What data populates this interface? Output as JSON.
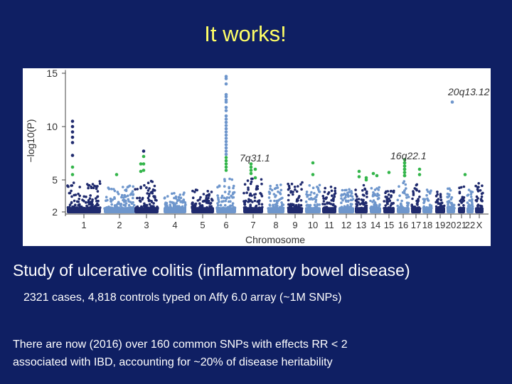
{
  "slide": {
    "title": "It works!",
    "study": "Study of ulcerative colitis (inflammatory bowel disease)",
    "cases": "2321 cases, 4,818 controls typed on Affy 6.0 array (~1M SNPs)",
    "note_line1": "There are now (2016) over 160 common SNPs with effects RR < 2",
    "note_line2": "associated with IBD, accounting for ~20% of disease heritability"
  },
  "chart_data": {
    "type": "scatter",
    "title": "",
    "xlabel": "Chromosome",
    "ylabel": "−log10(P)",
    "ylim": [
      1.5,
      15.5
    ],
    "yticks": [
      2,
      5,
      10,
      15
    ],
    "grid": false,
    "legend": "none",
    "colors": {
      "dark": "#1f2a6e",
      "light": "#6e96cc",
      "significant": "#33b54a"
    },
    "chromosomes": [
      "1",
      "2",
      "3",
      "4",
      "5",
      "6",
      "7",
      "8",
      "9",
      "10",
      "11",
      "12",
      "13",
      "14",
      "15",
      "16",
      "17",
      "18",
      "19",
      "20",
      "21",
      "22",
      "X"
    ],
    "background_peaks": [
      4.9,
      4.5,
      5.0,
      3.8,
      4.2,
      5.3,
      5.2,
      4.6,
      4.8,
      4.6,
      4.4,
      4.2,
      4.6,
      4.5,
      4.3,
      5.0,
      4.8,
      4.1,
      4.5,
      4.2,
      4.4,
      4.1,
      4.9
    ],
    "annotations": [
      {
        "label": "20q13.12",
        "chromosome": "20"
      },
      {
        "label": "7q31.1",
        "chromosome": "7"
      },
      {
        "label": "16q22.1",
        "chromosome": "16"
      }
    ],
    "top_hits": [
      {
        "chromosome": "1",
        "values": [
          10.5,
          10.0,
          9.5,
          9.0,
          8.5,
          7.3,
          6.2,
          5.5
        ]
      },
      {
        "chromosome": "2",
        "values": [
          5.5
        ]
      },
      {
        "chromosome": "3",
        "values": [
          6.5,
          5.8
        ]
      },
      {
        "chromosome": "3",
        "values": [
          7.7,
          7.2,
          6.5,
          5.9
        ]
      },
      {
        "chromosome": "6",
        "values": [
          14.7,
          14.5,
          14.0,
          13.0,
          12.8,
          12.5,
          12.3,
          11.8,
          11.5,
          11.0,
          10.7,
          10.4,
          10.1,
          9.8,
          9.5,
          9.2,
          8.9,
          8.6,
          8.3,
          8.0,
          7.7,
          7.4,
          7.1,
          6.8,
          6.5,
          6.2,
          5.9
        ]
      },
      {
        "chromosome": "7",
        "values": [
          6.0,
          5.2
        ]
      },
      {
        "chromosome": "7",
        "values": [
          6.5,
          6.2,
          5.9,
          5.6
        ]
      },
      {
        "chromosome": "10",
        "values": [
          6.6,
          5.5
        ]
      },
      {
        "chromosome": "13",
        "values": [
          5.8,
          5.3
        ]
      },
      {
        "chromosome": "13",
        "values": [
          5.2,
          5.0
        ]
      },
      {
        "chromosome": "14",
        "values": [
          5.6
        ]
      },
      {
        "chromosome": "14",
        "values": [
          5.4
        ]
      },
      {
        "chromosome": "15",
        "values": [
          5.7
        ]
      },
      {
        "chromosome": "16",
        "values": [
          6.6,
          6.3,
          6.0,
          5.7,
          5.4
        ]
      },
      {
        "chromosome": "16",
        "values": [
          6.9,
          6.6,
          6.3,
          6.0,
          5.7,
          5.4
        ]
      },
      {
        "chromosome": "17",
        "values": [
          6.0,
          5.5
        ]
      },
      {
        "chromosome": "20",
        "values": [
          12.3
        ]
      },
      {
        "chromosome": "21",
        "values": [
          5.5
        ]
      }
    ]
  }
}
